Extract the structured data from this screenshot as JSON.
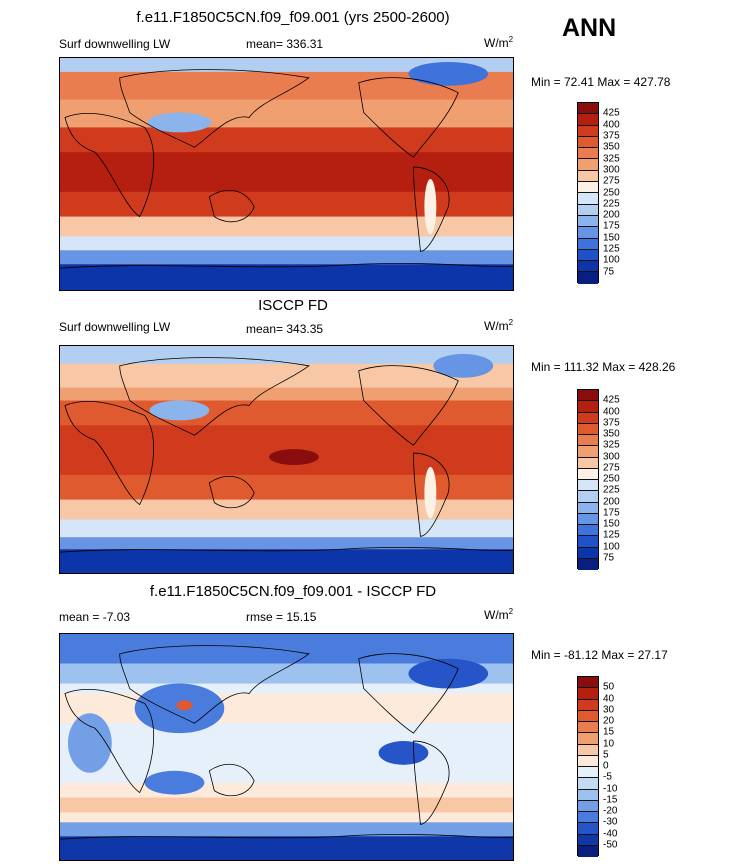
{
  "header": {
    "season": "ANN"
  },
  "panels": [
    {
      "title": "f.e11.F1850C5CN.f09_f09.001 (yrs 2500-2600)",
      "left_label": "Surf downwelling LW",
      "center_label": "mean= 336.31",
      "units": "W/m",
      "units_sup": "2",
      "minmax": "Min =  72.41 Max = 427.78",
      "colorbar_ticks": [
        "425",
        "400",
        "375",
        "350",
        "325",
        "300",
        "275",
        "250",
        "225",
        "200",
        "175",
        "150",
        "125",
        "100",
        "75"
      ],
      "colors": [
        "#8a0d0d",
        "#b51f10",
        "#cf3b1c",
        "#df5a2e",
        "#e97d4f",
        "#f0a070",
        "#f8c7a6",
        "#fdf1e6",
        "#d5e6f8",
        "#b2cff2",
        "#8bb4ec",
        "#6595e4",
        "#3f73db",
        "#1f52c9",
        "#0d35aa",
        "#081f80"
      ]
    },
    {
      "title": "ISCCP FD",
      "left_label": "Surf downwelling LW",
      "center_label": "mean= 343.35",
      "units": "W/m",
      "units_sup": "2",
      "minmax": "Min = 111.32 Max = 428.26",
      "colorbar_ticks": [
        "425",
        "400",
        "375",
        "350",
        "325",
        "300",
        "275",
        "250",
        "225",
        "200",
        "175",
        "150",
        "125",
        "100",
        "75"
      ],
      "colors": [
        "#8a0d0d",
        "#b51f10",
        "#cf3b1c",
        "#df5a2e",
        "#e97d4f",
        "#f0a070",
        "#f8c7a6",
        "#fdf1e6",
        "#d5e6f8",
        "#b2cff2",
        "#8bb4ec",
        "#6595e4",
        "#3f73db",
        "#1f52c9",
        "#0d35aa",
        "#081f80"
      ]
    },
    {
      "title": "f.e11.F1850C5CN.f09_f09.001 - ISCCP FD",
      "left_label": "mean =  -7.03",
      "center_label": "rmse =  15.15",
      "units": "W/m",
      "units_sup": "2",
      "minmax": "Min = -81.12 Max =  27.17",
      "colorbar_ticks": [
        "50",
        "40",
        "30",
        "20",
        "15",
        "10",
        "5",
        "0",
        "-5",
        "-10",
        "-15",
        "-20",
        "-30",
        "-40",
        "-50"
      ],
      "colors": [
        "#8a0d0d",
        "#b51f10",
        "#cf3b1c",
        "#df5a2e",
        "#e97d4f",
        "#f0a070",
        "#f8c7a6",
        "#fdeadb",
        "#e6f0fb",
        "#c3dbf5",
        "#9dc2ef",
        "#729fe6",
        "#4a7cdd",
        "#2555c9",
        "#0f37a8",
        "#081f80"
      ]
    }
  ],
  "chart_data": [
    {
      "type": "heatmap",
      "title": "f.e11.F1850C5CN.f09_f09.001 (yrs 2500-2600)",
      "variable": "Surf downwelling LW",
      "mean": 336.31,
      "min": 72.41,
      "max": 427.78,
      "units": "W/m2",
      "levels": [
        75,
        100,
        125,
        150,
        175,
        200,
        225,
        250,
        275,
        300,
        325,
        350,
        375,
        400,
        425
      ]
    },
    {
      "type": "heatmap",
      "title": "ISCCP FD",
      "variable": "Surf downwelling LW",
      "mean": 343.35,
      "min": 111.32,
      "max": 428.26,
      "units": "W/m2",
      "levels": [
        75,
        100,
        125,
        150,
        175,
        200,
        225,
        250,
        275,
        300,
        325,
        350,
        375,
        400,
        425
      ]
    },
    {
      "type": "heatmap",
      "title": "f.e11.F1850C5CN.f09_f09.001 - ISCCP FD",
      "mean": -7.03,
      "rmse": 15.15,
      "min": -81.12,
      "max": 27.17,
      "units": "W/m2",
      "levels": [
        -50,
        -40,
        -30,
        -20,
        -15,
        -10,
        -5,
        0,
        5,
        10,
        15,
        20,
        30,
        40,
        50
      ]
    }
  ]
}
